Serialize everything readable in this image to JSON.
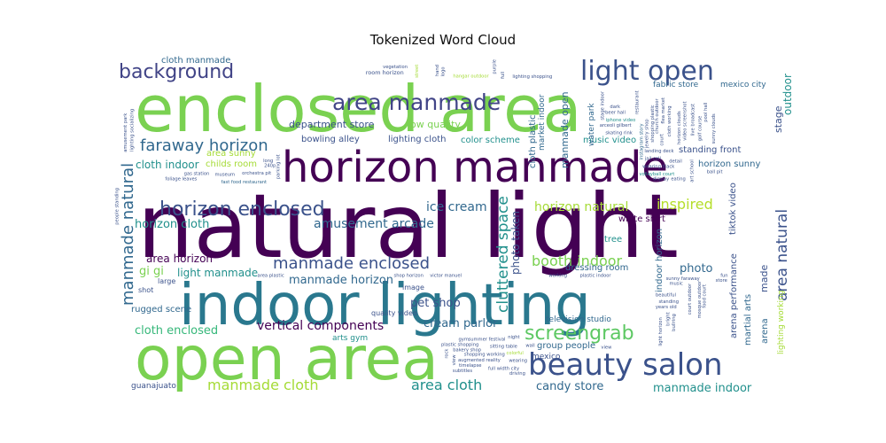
{
  "chart_data": {
    "type": "wordcloud",
    "title": "Tokenized Word Cloud",
    "colormap": [
      "#440154",
      "#3b528b",
      "#21908c",
      "#5dc863",
      "#a5db36",
      "#fde725"
    ],
    "words": [
      {
        "text": "natural light",
        "weight": 100,
        "color": "#440154"
      },
      {
        "text": "enclosed area",
        "weight": 70,
        "color": "#7ad151"
      },
      {
        "text": "indoor lighting",
        "weight": 58,
        "color": "#2a788e"
      },
      {
        "text": "open area",
        "weight": 60,
        "color": "#7ad151"
      },
      {
        "text": "horizon manmade",
        "weight": 44,
        "color": "#440154"
      },
      {
        "text": "beauty salon",
        "weight": 30,
        "color": "#3b528b"
      },
      {
        "text": "light open",
        "weight": 26,
        "color": "#3b528b"
      },
      {
        "text": "area manmade",
        "weight": 22,
        "color": "#414487"
      },
      {
        "text": "background",
        "weight": 20,
        "color": "#414487"
      },
      {
        "text": "horizon enclosed",
        "weight": 20,
        "color": "#3b528b"
      },
      {
        "text": "faraway horizon",
        "weight": 16,
        "color": "#31688e"
      },
      {
        "text": "manmade enclosed",
        "weight": 16,
        "color": "#3b528b"
      },
      {
        "text": "screengrab",
        "weight": 18,
        "color": "#5dc863"
      },
      {
        "text": "area natural",
        "weight": 15,
        "color": "#3b528b"
      },
      {
        "text": "manmade natural",
        "weight": 15,
        "color": "#31688e"
      },
      {
        "text": "cluttered space",
        "weight": 14,
        "color": "#21908c"
      },
      {
        "text": "manmade cloth",
        "weight": 14,
        "color": "#a5db36"
      },
      {
        "text": "area cloth",
        "weight": 13,
        "color": "#21908c"
      },
      {
        "text": "booth indoor",
        "weight": 13,
        "color": "#7ad151"
      },
      {
        "text": "inspired",
        "weight": 13,
        "color": "#b5de2b"
      },
      {
        "text": "ice cream",
        "weight": 12,
        "color": "#31688e"
      },
      {
        "text": "vertical components",
        "weight": 11,
        "color": "#440154"
      },
      {
        "text": "horizon natural",
        "weight": 12,
        "color": "#a5db36"
      },
      {
        "text": "amusement arcade",
        "weight": 11,
        "color": "#31688e"
      },
      {
        "text": "manmade horizon",
        "weight": 11,
        "color": "#31688e"
      },
      {
        "text": "cloth enclosed",
        "weight": 11,
        "color": "#35b779"
      },
      {
        "text": "candy store",
        "weight": 11,
        "color": "#31688e"
      },
      {
        "text": "manmade indoor",
        "weight": 11,
        "color": "#21908c"
      },
      {
        "text": "pet shop",
        "weight": 11,
        "color": "#3b528b"
      },
      {
        "text": "cream parlor",
        "weight": 10,
        "color": "#31688e"
      },
      {
        "text": "horizon cloth",
        "weight": 11,
        "color": "#21908c"
      },
      {
        "text": "area horizon",
        "weight": 10,
        "color": "#440154"
      },
      {
        "text": "cloth indoor",
        "weight": 10,
        "color": "#21908c"
      },
      {
        "text": "gi gi",
        "weight": 11,
        "color": "#7ad151"
      },
      {
        "text": "light manmade",
        "weight": 10,
        "color": "#21908c"
      },
      {
        "text": "department store",
        "weight": 10,
        "color": "#3b528b"
      },
      {
        "text": "low quality",
        "weight": 10,
        "color": "#7ad151"
      },
      {
        "text": "bowling alley",
        "weight": 9,
        "color": "#3b528b"
      },
      {
        "text": "lighting cloth",
        "weight": 9,
        "color": "#3b528b"
      },
      {
        "text": "color scheme",
        "weight": 8,
        "color": "#21908c"
      },
      {
        "text": "music video",
        "weight": 8,
        "color": "#21908c"
      },
      {
        "text": "standing front",
        "weight": 8,
        "color": "#3b528b"
      },
      {
        "text": "horizon sunny",
        "weight": 8,
        "color": "#31688e"
      },
      {
        "text": "group people",
        "weight": 8,
        "color": "#31688e"
      },
      {
        "text": "dressing room",
        "weight": 8,
        "color": "#31688e"
      },
      {
        "text": "photo",
        "weight": 11,
        "color": "#31688e"
      },
      {
        "text": "tree",
        "weight": 8,
        "color": "#21908c"
      },
      {
        "text": "rugged scene",
        "weight": 8,
        "color": "#31688e"
      },
      {
        "text": "cloth manmade",
        "weight": 8,
        "color": "#31688e"
      },
      {
        "text": "childs room",
        "weight": 8,
        "color": "#a5db36"
      },
      {
        "text": "white shirt",
        "weight": 8,
        "color": "#440154"
      },
      {
        "text": "arena performance",
        "weight": 8,
        "color": "#3b528b"
      },
      {
        "text": "indoor horizon",
        "weight": 7,
        "color": "#31688e"
      },
      {
        "text": "television studio",
        "weight": 7,
        "color": "#31688e"
      },
      {
        "text": "martial arts",
        "weight": 8,
        "color": "#31688e"
      },
      {
        "text": "guanajuato",
        "weight": 7,
        "color": "#3b528b"
      },
      {
        "text": "mexico",
        "weight": 7,
        "color": "#3b528b"
      },
      {
        "text": "arts gym",
        "weight": 7,
        "color": "#21908c"
      },
      {
        "text": "area sunny",
        "weight": 7,
        "color": "#a5db36"
      },
      {
        "text": "fabric store",
        "weight": 7,
        "color": "#31688e"
      },
      {
        "text": "mexico city",
        "weight": 7,
        "color": "#31688e"
      },
      {
        "text": "outdoor",
        "weight": 9,
        "color": "#21908c"
      },
      {
        "text": "stage",
        "weight": 8,
        "color": "#3b528b"
      },
      {
        "text": "tiktok video",
        "weight": 7,
        "color": "#3b528b"
      },
      {
        "text": "water park",
        "weight": 7,
        "color": "#31688e"
      },
      {
        "text": "market indoor",
        "weight": 7,
        "color": "#31688e"
      },
      {
        "text": "manmade open",
        "weight": 7,
        "color": "#31688e"
      },
      {
        "text": "cloth plastic",
        "weight": 7,
        "color": "#31688e"
      },
      {
        "text": "quality video",
        "weight": 6,
        "color": "#3b528b"
      },
      {
        "text": "photo taken",
        "weight": 8,
        "color": "#3b528b"
      },
      {
        "text": "image",
        "weight": 6,
        "color": "#3b528b"
      },
      {
        "text": "shot",
        "weight": 6,
        "color": "#3b528b"
      },
      {
        "text": "large",
        "weight": 6,
        "color": "#3b528b"
      },
      {
        "text": "made",
        "weight": 7,
        "color": "#3b528b"
      },
      {
        "text": "arena",
        "weight": 7,
        "color": "#31688e"
      },
      {
        "text": "lighting working",
        "weight": 6,
        "color": "#a5db36"
      },
      {
        "text": "fast food restaurant",
        "weight": 4,
        "color": "#31688e"
      },
      {
        "text": "instagram story",
        "weight": 4,
        "color": "#31688e"
      },
      {
        "text": "summer festival",
        "weight": 4,
        "color": "#3b528b"
      },
      {
        "text": "parking lot",
        "weight": 4,
        "color": "#3b528b"
      },
      {
        "text": "orchestra pit",
        "weight": 4,
        "color": "#3b528b"
      },
      {
        "text": "jewelry shop",
        "weight": 4,
        "color": "#3b528b"
      },
      {
        "text": "plastic shopping",
        "weight": 4,
        "color": "#3b528b"
      },
      {
        "text": "bakery shop",
        "weight": 4,
        "color": "#3b528b"
      },
      {
        "text": "volleyball court",
        "weight": 4,
        "color": "#21908c"
      },
      {
        "text": "sitting table",
        "weight": 4,
        "color": "#3b528b"
      },
      {
        "text": "shopping plastic",
        "weight": 4,
        "color": "#3b528b"
      },
      {
        "text": "gym",
        "weight": 4,
        "color": "#3b528b"
      },
      {
        "text": "court",
        "weight": 4,
        "color": "#3b528b"
      },
      {
        "text": "jail cell",
        "weight": 4,
        "color": "#3b528b"
      },
      {
        "text": "eating",
        "weight": 4,
        "color": "#3b528b"
      },
      {
        "text": "sunny faraway",
        "weight": 4,
        "color": "#3b528b"
      },
      {
        "text": "cloth working",
        "weight": 4,
        "color": "#3b528b"
      },
      {
        "text": "landing deck",
        "weight": 4,
        "color": "#3b528b"
      },
      {
        "text": "shopping working",
        "weight": 4,
        "color": "#3b528b"
      },
      {
        "text": "horizon clouds",
        "weight": 4,
        "color": "#3b528b"
      },
      {
        "text": "iphone video",
        "weight": 4,
        "color": "#21908c"
      },
      {
        "text": "church outdoor",
        "weight": 4,
        "color": "#3b528b"
      },
      {
        "text": "mosque outdoor",
        "weight": 4,
        "color": "#3b528b"
      },
      {
        "text": "hangar outdoor",
        "weight": 4,
        "color": "#a5db36"
      },
      {
        "text": "plastic indoor",
        "weight": 4,
        "color": "#3b528b"
      },
      {
        "text": "shop horizon",
        "weight": 4,
        "color": "#3b528b"
      },
      {
        "text": "court outdoor",
        "weight": 4,
        "color": "#3b528b"
      },
      {
        "text": "wearing black",
        "weight": 4,
        "color": "#3b528b"
      },
      {
        "text": "flea market",
        "weight": 4,
        "color": "#3b528b"
      },
      {
        "text": "skating rink",
        "weight": 4,
        "color": "#3b528b"
      },
      {
        "text": "victor manuel",
        "weight": 4,
        "color": "#3b528b"
      },
      {
        "text": "augmented reality",
        "weight": 4,
        "color": "#3b528b"
      },
      {
        "text": "beer hall",
        "weight": 4,
        "color": "#3b528b"
      },
      {
        "text": "museum",
        "weight": 4,
        "color": "#3b528b"
      },
      {
        "text": "stage indoor",
        "weight": 4,
        "color": "#3b528b"
      },
      {
        "text": "foliage leaves",
        "weight": 4,
        "color": "#3b528b"
      },
      {
        "text": "video screenshot",
        "weight": 4,
        "color": "#3b528b"
      },
      {
        "text": "arceoli gilbert",
        "weight": 4,
        "color": "#3b528b"
      },
      {
        "text": "full width city",
        "weight": 4,
        "color": "#3b528b"
      },
      {
        "text": "years old",
        "weight": 4,
        "color": "#3b528b"
      },
      {
        "text": "beautiful",
        "weight": 4,
        "color": "#3b528b"
      },
      {
        "text": "detail",
        "weight": 4,
        "color": "#3b528b"
      },
      {
        "text": "view",
        "weight": 4,
        "color": "#3b528b"
      },
      {
        "text": "room horizon",
        "weight": 5,
        "color": "#3b528b"
      },
      {
        "text": "people standing",
        "weight": 4,
        "color": "#3b528b"
      },
      {
        "text": "purple",
        "weight": 4,
        "color": "#3b528b"
      },
      {
        "text": "dark",
        "weight": 4,
        "color": "#3b528b"
      },
      {
        "text": "art school",
        "weight": 4,
        "color": "#3b528b"
      },
      {
        "text": "long",
        "weight": 4,
        "color": "#3b528b"
      },
      {
        "text": "wall",
        "weight": 4,
        "color": "#3b528b"
      },
      {
        "text": "rock",
        "weight": 4,
        "color": "#3b528b"
      },
      {
        "text": "night",
        "weight": 4,
        "color": "#3b528b"
      },
      {
        "text": "street",
        "weight": 4,
        "color": "#a5db36"
      },
      {
        "text": "colorful",
        "weight": 4,
        "color": "#a5db36"
      },
      {
        "text": "240p",
        "weight": 4,
        "color": "#3b528b"
      },
      {
        "text": "hand",
        "weight": 4,
        "color": "#3b528b"
      },
      {
        "text": "live broadcast",
        "weight": 4,
        "color": "#3b528b"
      },
      {
        "text": "bullring",
        "weight": 4,
        "color": "#3b528b"
      },
      {
        "text": "timelapse",
        "weight": 4,
        "color": "#3b528b"
      },
      {
        "text": "gas station",
        "weight": 4,
        "color": "#3b528b"
      },
      {
        "text": "subtitles",
        "weight": 4,
        "color": "#3b528b"
      },
      {
        "text": "golf course",
        "weight": 4,
        "color": "#3b528b"
      },
      {
        "text": "lighting socializing",
        "weight": 4,
        "color": "#3b528b"
      },
      {
        "text": "pool hall",
        "weight": 4,
        "color": "#3b528b"
      },
      {
        "text": "wearing",
        "weight": 4,
        "color": "#3b528b"
      },
      {
        "text": "logo",
        "weight": 4,
        "color": "#3b528b"
      },
      {
        "text": "ball pit",
        "weight": 4,
        "color": "#3b528b"
      },
      {
        "text": "working",
        "weight": 4,
        "color": "#3b528b"
      },
      {
        "text": "standing",
        "weight": 4,
        "color": "#3b528b"
      },
      {
        "text": "full",
        "weight": 4,
        "color": "#3b528b"
      },
      {
        "text": "driving",
        "weight": 4,
        "color": "#3b528b"
      },
      {
        "text": "area plastic",
        "weight": 4,
        "color": "#3b528b"
      },
      {
        "text": "fun",
        "weight": 4,
        "color": "#3b528b"
      },
      {
        "text": "bright",
        "weight": 4,
        "color": "#3b528b"
      },
      {
        "text": "food court",
        "weight": 4,
        "color": "#3b528b"
      },
      {
        "text": "amusement park",
        "weight": 4,
        "color": "#3b528b"
      },
      {
        "text": "light horizon",
        "weight": 4,
        "color": "#3b528b"
      },
      {
        "text": "sunny clouds",
        "weight": 4,
        "color": "#3b528b"
      },
      {
        "text": "lighting shopping",
        "weight": 4,
        "color": "#3b528b"
      },
      {
        "text": "vegetation",
        "weight": 4,
        "color": "#3b528b"
      },
      {
        "text": "store",
        "weight": 4,
        "color": "#3b528b"
      },
      {
        "text": "restaurant",
        "weight": 4,
        "color": "#3b528b"
      },
      {
        "text": "display",
        "weight": 4,
        "color": "#3b528b"
      },
      {
        "text": "music",
        "weight": 4,
        "color": "#3b528b"
      },
      {
        "text": "view",
        "weight": 4,
        "color": "#3b528b"
      }
    ]
  }
}
